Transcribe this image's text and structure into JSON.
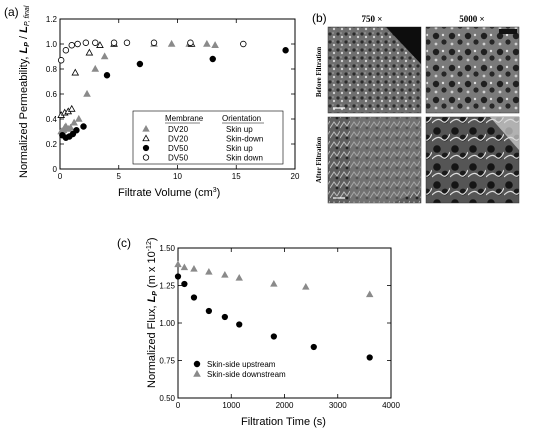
{
  "chart_data": [
    {
      "panel": "(a)",
      "type": "scatter",
      "xlabel": "Filtrate Volume (cm",
      "xlabel_sup": "3",
      "xlabel_tail": ")",
      "ylabel_main": "Normalized Permeability, ",
      "ylabel_lp": "L",
      "ylabel_sub_p": "P",
      "ylabel_slash": " / ",
      "ylabel_sub_final": "P, final",
      "xlim": [
        0,
        20
      ],
      "ylim": [
        0,
        1.2
      ],
      "xticks": [
        "0",
        "5",
        "10",
        "15",
        "20"
      ],
      "yticks": [
        "0",
        "0.2",
        "0.4",
        "0.6",
        "0.8",
        "1.0",
        "1.2"
      ],
      "legend": {
        "header_membrane": "Membrane",
        "header_orientation": "Orientation",
        "entries": [
          {
            "membrane": "DV20",
            "orientation": "Skin up",
            "marker": "triangle-filled",
            "color": "#8a8a8a"
          },
          {
            "membrane": "DV20",
            "orientation": "Skin-down",
            "marker": "triangle-open",
            "color": "#000000"
          },
          {
            "membrane": "DV50",
            "orientation": "Skin up",
            "marker": "circle-filled",
            "color": "#000000"
          },
          {
            "membrane": "DV50",
            "orientation": "Skin down",
            "marker": "circle-open",
            "color": "#000000"
          }
        ]
      },
      "series": [
        {
          "name": "DV20 Skin up",
          "marker": "triangle-filled",
          "color": "#8a8a8a",
          "x": [
            0.1,
            0.2,
            0.3,
            0.4,
            0.5,
            0.7,
            0.9,
            1.2,
            1.6,
            2.3,
            3.0,
            3.8,
            8.0,
            9.5,
            11.0,
            12.5,
            13.2
          ],
          "y": [
            0.3,
            0.3,
            0.31,
            0.33,
            0.34,
            0.32,
            0.33,
            0.37,
            0.4,
            0.6,
            0.8,
            0.9,
            1.0,
            1.0,
            1.0,
            1.0,
            0.99
          ]
        },
        {
          "name": "DV20 Skin-down",
          "marker": "triangle-open",
          "color": "#000000",
          "x": [
            0.1,
            0.4,
            0.7,
            1.0,
            1.3,
            2.5,
            3.4,
            4.6,
            11.2
          ],
          "y": [
            0.43,
            0.45,
            0.46,
            0.48,
            0.77,
            0.93,
            0.99,
            1.0,
            1.0
          ]
        },
        {
          "name": "DV50 Skin up",
          "marker": "circle-filled",
          "color": "#000000",
          "x": [
            0.2,
            0.5,
            0.8,
            1.1,
            1.4,
            2.0,
            4.0,
            6.8,
            13.0,
            19.2
          ],
          "y": [
            0.27,
            0.25,
            0.26,
            0.28,
            0.31,
            0.34,
            0.75,
            0.84,
            0.88,
            0.95
          ]
        },
        {
          "name": "DV50 Skin down",
          "marker": "circle-open",
          "color": "#000000",
          "x": [
            0.1,
            0.5,
            1.0,
            1.5,
            2.2,
            3.0,
            4.6,
            5.7,
            8.0,
            11.1,
            15.6
          ],
          "y": [
            0.87,
            0.95,
            0.99,
            1.0,
            1.01,
            1.01,
            1.01,
            1.01,
            1.01,
            1.01,
            1.0
          ]
        }
      ]
    },
    {
      "panel": "(c)",
      "type": "scatter",
      "xlabel": "Filtration Time (s)",
      "ylabel_main": "Normalized Flux, ",
      "ylabel_lp": "L",
      "ylabel_sub_p": "P",
      "ylabel_unit_open": " (m x 10",
      "ylabel_unit_sup": "-12",
      "ylabel_unit_close": ")",
      "xlim": [
        0,
        4000
      ],
      "ylim": [
        0.5,
        1.5
      ],
      "xticks": [
        "0",
        "1000",
        "2000",
        "3000",
        "4000"
      ],
      "yticks": [
        "0.50",
        "0.75",
        "1.00",
        "1.25",
        "1.50"
      ],
      "legend": [
        {
          "label": "Skin-side upstream",
          "marker": "circle-filled",
          "color": "#000000"
        },
        {
          "label": "Skin-side downstream",
          "marker": "triangle-filled",
          "color": "#8a8a8a"
        }
      ],
      "series": [
        {
          "name": "Skin-side upstream",
          "marker": "circle-filled",
          "color": "#000000",
          "x": [
            0,
            120,
            300,
            580,
            880,
            1150,
            1800,
            2550,
            3600
          ],
          "y": [
            1.31,
            1.26,
            1.17,
            1.08,
            1.04,
            0.99,
            0.91,
            0.84,
            0.77
          ]
        },
        {
          "name": "Skin-side downstream",
          "marker": "triangle-filled",
          "color": "#8a8a8a",
          "x": [
            0,
            120,
            300,
            580,
            880,
            1150,
            1800,
            2400,
            3600
          ],
          "y": [
            1.39,
            1.37,
            1.36,
            1.34,
            1.32,
            1.3,
            1.26,
            1.24,
            1.19
          ]
        }
      ]
    }
  ],
  "sem_panel": {
    "label": "(b)",
    "col_headers": [
      "750 ×",
      "5000 ×"
    ],
    "row_labels": [
      "Before Filtration",
      "After Filtration"
    ]
  }
}
